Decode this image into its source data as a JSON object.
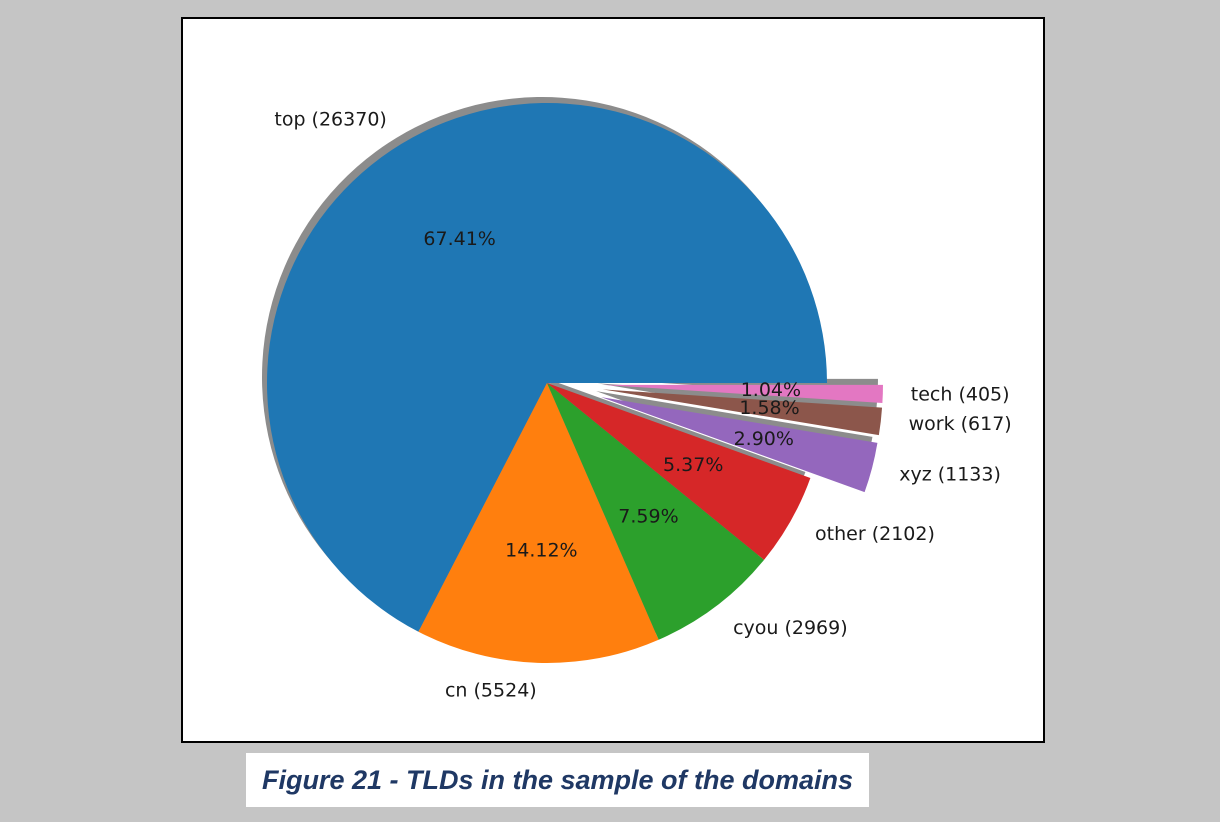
{
  "caption": "Figure 21 - TLDs in the sample of the domains",
  "chart_data": {
    "type": "pie",
    "categories": [
      "top",
      "cn",
      "cyou",
      "other",
      "xyz",
      "work",
      "tech"
    ],
    "values": [
      26370,
      5524,
      2969,
      2102,
      1133,
      617,
      405
    ],
    "labels": [
      "top (26370)",
      "cn (5524)",
      "cyou (2969)",
      "other (2102)",
      "xyz (1133)",
      "work (617)",
      "tech (405)"
    ],
    "percentages": [
      "67.41%",
      "14.12%",
      "7.59%",
      "5.37%",
      "2.90%",
      "1.58%",
      "1.04%"
    ],
    "colors": [
      "#1f77b4",
      "#ff7f0e",
      "#2ca02c",
      "#d62728",
      "#9467bd",
      "#8c564b",
      "#e377c2"
    ],
    "exploded": [
      false,
      false,
      false,
      false,
      true,
      true,
      true
    ],
    "shadow": true,
    "title": "",
    "legend": "none"
  }
}
